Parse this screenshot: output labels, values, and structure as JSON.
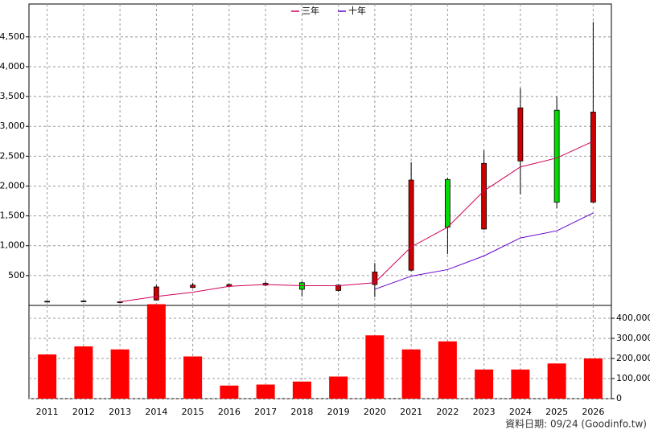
{
  "chart_data": [
    {
      "type": "candlestick",
      "categories": [
        "2011",
        "2012",
        "2013",
        "2014",
        "2015",
        "2016",
        "2017",
        "2018",
        "2019",
        "2020",
        "2021",
        "2022",
        "2023",
        "2024",
        "2025",
        "2026"
      ],
      "open": [
        60,
        70,
        55,
        90,
        300,
        320,
        340,
        380,
        250,
        350,
        590,
        2110,
        1280,
        2420,
        3270,
        1730
      ],
      "high": [
        75,
        85,
        65,
        340,
        380,
        370,
        400,
        400,
        350,
        710,
        2400,
        2140,
        2600,
        3640,
        3500,
        4750
      ],
      "low": [
        50,
        60,
        45,
        80,
        290,
        300,
        320,
        150,
        230,
        140,
        570,
        860,
        1270,
        1860,
        1630,
        1720
      ],
      "close": [
        70,
        75,
        60,
        310,
        340,
        350,
        370,
        270,
        340,
        560,
        2100,
        1310,
        2380,
        3310,
        1730,
        3240
      ],
      "up_color": "#cc0000",
      "down_color": "#00dd00",
      "series": [
        {
          "name": "三年",
          "color": "#d0005a",
          "values": [
            null,
            null,
            60,
            150,
            220,
            320,
            350,
            330,
            330,
            380,
            980,
            1310,
            1920,
            2320,
            2470,
            2750
          ]
        },
        {
          "name": "十年",
          "color": "#6600cc",
          "values": [
            null,
            null,
            null,
            null,
            null,
            null,
            null,
            null,
            null,
            270,
            490,
            600,
            830,
            1130,
            1250,
            1550
          ]
        }
      ],
      "ylim": [
        0,
        5050
      ],
      "yticks": [
        500,
        {
          "value": 1000,
          "label": "1,000"
        },
        {
          "value": 1500,
          "label": "1,500"
        },
        {
          "value": 2000,
          "label": "2,000"
        },
        {
          "value": 2500,
          "label": "2,500"
        },
        {
          "value": 3000,
          "label": "3,000"
        },
        {
          "value": 3500,
          "label": "3,500"
        },
        {
          "value": 4000,
          "label": "4,000"
        },
        {
          "value": 4500,
          "label": "4,500"
        }
      ],
      "grid": true,
      "legend": "top"
    },
    {
      "type": "bar",
      "categories": [
        "2011",
        "2012",
        "2013",
        "2014",
        "2015",
        "2016",
        "2017",
        "2018",
        "2019",
        "2020",
        "2021",
        "2022",
        "2023",
        "2024",
        "2025",
        "2026"
      ],
      "values": [
        220000,
        260000,
        245000,
        470000,
        210000,
        65000,
        70000,
        85000,
        110000,
        315000,
        245000,
        285000,
        145000,
        145000,
        175000,
        200000
      ],
      "color": "#ff0000",
      "ylim": [
        0,
        464000
      ],
      "yticks": [
        0,
        {
          "value": 100000,
          "label": "100,000"
        },
        {
          "value": 200000,
          "label": "200,000"
        },
        {
          "value": 300000,
          "label": "300,000"
        },
        {
          "value": 400000,
          "label": "400,000"
        }
      ],
      "grid": true,
      "y_axis_side": "right",
      "footnote": "資料日期: 09/24 (Goodinfo.tw)"
    }
  ]
}
